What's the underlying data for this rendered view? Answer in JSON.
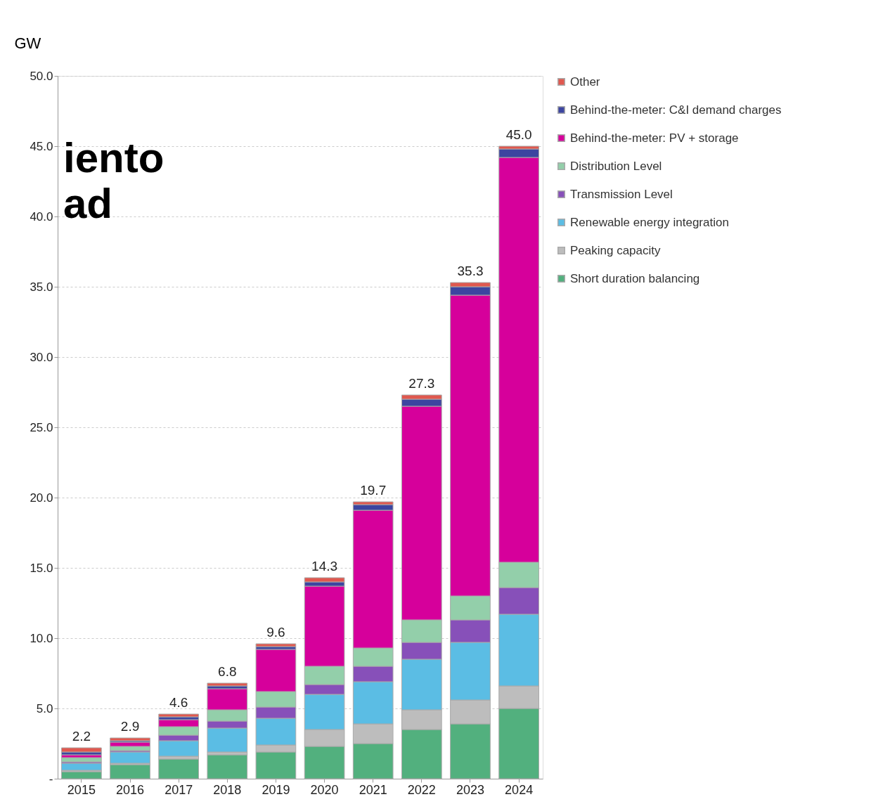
{
  "chart_data": {
    "type": "bar",
    "stacked": true,
    "ylabel": "GW",
    "categories": [
      "2015",
      "2016",
      "2017",
      "2018",
      "2019",
      "2020",
      "2021",
      "2022",
      "2023",
      "2024"
    ],
    "series": [
      {
        "name": "Short duration balancing",
        "color": "#52b07e",
        "values": [
          0.5,
          1.0,
          1.4,
          1.7,
          1.9,
          2.3,
          2.5,
          3.5,
          3.9,
          5.0
        ]
      },
      {
        "name": "Peaking capacity",
        "color": "#bdbdbd",
        "values": [
          0.1,
          0.1,
          0.2,
          0.2,
          0.5,
          1.2,
          1.4,
          1.4,
          1.7,
          1.6
        ]
      },
      {
        "name": "Renewable energy integration",
        "color": "#5bbde4",
        "values": [
          0.5,
          0.8,
          1.1,
          1.7,
          1.9,
          2.5,
          3.0,
          3.6,
          4.1,
          5.1
        ]
      },
      {
        "name": "Transmission Level",
        "color": "#8750b9",
        "values": [
          0.1,
          0.1,
          0.4,
          0.5,
          0.8,
          0.7,
          1.1,
          1.2,
          1.6,
          1.9
        ]
      },
      {
        "name": "Distribution Level",
        "color": "#93cfaa",
        "values": [
          0.3,
          0.3,
          0.6,
          0.8,
          1.1,
          1.3,
          1.3,
          1.6,
          1.7,
          1.8
        ]
      },
      {
        "name": "Behind-the-meter: PV + storage",
        "color": "#d6009b",
        "values": [
          0.2,
          0.3,
          0.5,
          1.5,
          3.0,
          5.7,
          9.8,
          15.2,
          21.4,
          28.8
        ]
      },
      {
        "name": "Behind-the-meter: C&I demand charges",
        "color": "#3c45a0",
        "values": [
          0.2,
          0.1,
          0.2,
          0.2,
          0.2,
          0.3,
          0.4,
          0.5,
          0.6,
          0.6
        ]
      },
      {
        "name": "Other",
        "color": "#e0584f",
        "values": [
          0.3,
          0.2,
          0.2,
          0.2,
          0.2,
          0.3,
          0.2,
          0.3,
          0.3,
          0.2
        ]
      }
    ],
    "totals": [
      "2.2",
      "2.9",
      "4.6",
      "6.8",
      "9.6",
      "14.3",
      "19.7",
      "27.3",
      "35.3",
      "45.0"
    ],
    "ylim": [
      0,
      50
    ],
    "yticks": [
      {
        "value": 0,
        "label": "-"
      },
      {
        "value": 5,
        "label": "5.0"
      },
      {
        "value": 10,
        "label": "10.0"
      },
      {
        "value": 15,
        "label": "15.0"
      },
      {
        "value": 20,
        "label": "20.0"
      },
      {
        "value": 25,
        "label": "25.0"
      },
      {
        "value": 30,
        "label": "30.0"
      },
      {
        "value": 35,
        "label": "35.0"
      },
      {
        "value": 40,
        "label": "40.0"
      },
      {
        "value": 45,
        "label": "45.0"
      },
      {
        "value": 50,
        "label": "50.0"
      }
    ],
    "grid": "y",
    "legend": "right",
    "annotations": [
      "iento",
      "ad"
    ]
  }
}
